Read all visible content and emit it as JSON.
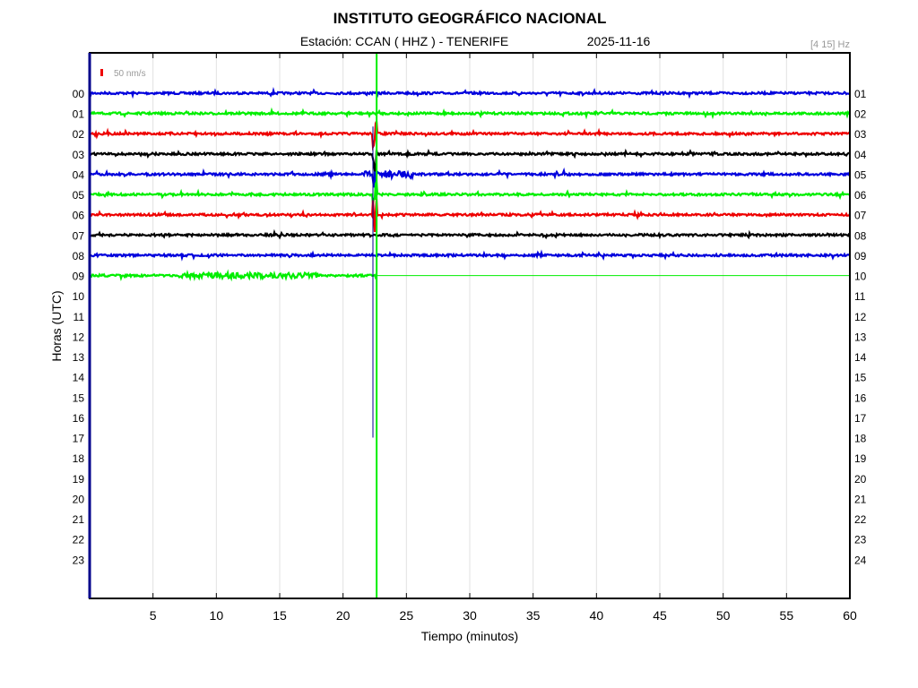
{
  "chart_data": {
    "type": "line",
    "title": "INSTITUTO GEOGRÁFICO NACIONAL",
    "subtitle_station": "Estación:  CCAN ( HHZ ) - TENERIFE",
    "subtitle_date": "2025-11-16",
    "filter_label": "[4 15] Hz",
    "scale_label": "50 nm/s",
    "xlabel": "Tiempo (minutos)",
    "ylabel": "Horas (UTC)",
    "xlim": [
      0,
      60
    ],
    "xticks": [
      "5",
      "10",
      "15",
      "20",
      "25",
      "30",
      "35",
      "40",
      "45",
      "50",
      "55",
      "60"
    ],
    "left_labels": [
      "00",
      "01",
      "02",
      "03",
      "04",
      "05",
      "06",
      "07",
      "08",
      "09",
      "10",
      "11",
      "12",
      "13",
      "14",
      "15",
      "16",
      "17",
      "18",
      "19",
      "20",
      "21",
      "22",
      "23"
    ],
    "right_labels": [
      "01",
      "02",
      "03",
      "04",
      "05",
      "06",
      "07",
      "08",
      "09",
      "10",
      "11",
      "12",
      "13",
      "14",
      "15",
      "16",
      "17",
      "18",
      "19",
      "20",
      "21",
      "22",
      "23",
      "24"
    ],
    "trace_colors": [
      "#0000dd",
      "#00ee00",
      "#ee0000",
      "#000000"
    ],
    "recorded_hours": 10,
    "current_time_minute": 22.65,
    "event": {
      "hour_row": 4,
      "minute": 22.5,
      "rows_affected": [
        2,
        3,
        4,
        5,
        6
      ]
    },
    "grid": true
  }
}
